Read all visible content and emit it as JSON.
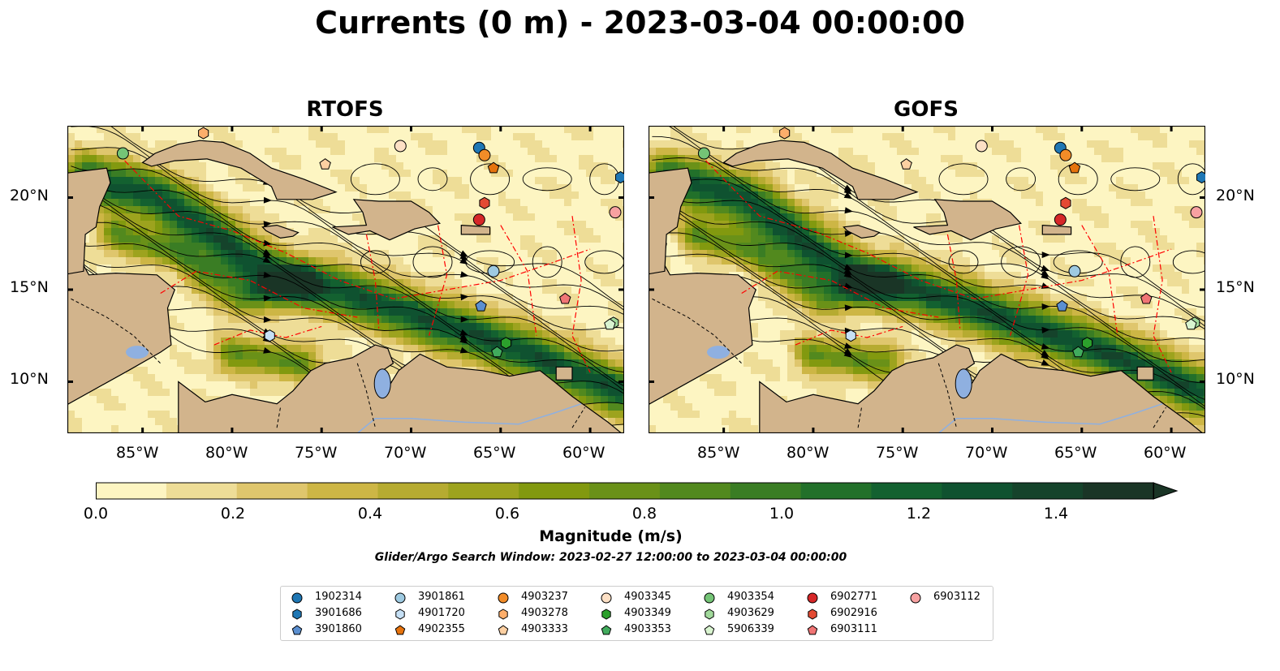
{
  "title": "Currents (0 m) - 2023-03-04 00:00:00",
  "panels": [
    {
      "title": "RTOFS"
    },
    {
      "title": "GOFS"
    }
  ],
  "axes": {
    "lon_ticks": [
      "85°W",
      "80°W",
      "75°W",
      "70°W",
      "65°W",
      "60°W"
    ],
    "lat_ticks": [
      "20°N",
      "15°N",
      "10°N"
    ]
  },
  "colorbar": {
    "label": "Magnitude (m/s)",
    "ticks": [
      "0.0",
      "0.2",
      "0.4",
      "0.6",
      "0.8",
      "1.0",
      "1.2",
      "1.4"
    ],
    "min": 0.0,
    "max": 1.5,
    "extend": "max",
    "colors": [
      "#fdf5c2",
      "#eedd97",
      "#dfc66d",
      "#cdb645",
      "#b6ab31",
      "#9da31e",
      "#82990f",
      "#6a9118",
      "#52891e",
      "#3a7d24",
      "#22702a",
      "#136130",
      "#0f5230",
      "#15432b",
      "#1a3526"
    ]
  },
  "search_window": "Glider/Argo Search Window: 2023-02-27 12:00:00 to 2023-03-04 00:00:00",
  "colors": {
    "land": "#d2b48c",
    "boundaries": "#ff0000",
    "lakes": "#8fb0e0"
  },
  "legend": [
    {
      "id": "1902314",
      "marker": "circle",
      "color": "#1f77b4"
    },
    {
      "id": "3901686",
      "marker": "hexagon",
      "color": "#1f77b4"
    },
    {
      "id": "3901860",
      "marker": "pentagon",
      "color": "#5b8fd0"
    },
    {
      "id": "3901861",
      "marker": "circle",
      "color": "#9ecae1"
    },
    {
      "id": "4901720",
      "marker": "hexagon",
      "color": "#c6e0f5"
    },
    {
      "id": "4902355",
      "marker": "pentagon",
      "color": "#e6730d"
    },
    {
      "id": "4903237",
      "marker": "circle",
      "color": "#f28c28"
    },
    {
      "id": "4903278",
      "marker": "hexagon",
      "color": "#fdae6b"
    },
    {
      "id": "4903333",
      "marker": "pentagon",
      "color": "#fdd0a2"
    },
    {
      "id": "4903345",
      "marker": "circle",
      "color": "#fde0c5"
    },
    {
      "id": "4903349",
      "marker": "hexagon",
      "color": "#2ca02c"
    },
    {
      "id": "4903353",
      "marker": "pentagon",
      "color": "#41ab5d"
    },
    {
      "id": "4903354",
      "marker": "circle",
      "color": "#74c476"
    },
    {
      "id": "4903629",
      "marker": "hexagon",
      "color": "#a1d99b"
    },
    {
      "id": "5906339",
      "marker": "pentagon",
      "color": "#d9f4d0"
    },
    {
      "id": "6902771",
      "marker": "circle",
      "color": "#d62728"
    },
    {
      "id": "6902916",
      "marker": "hexagon",
      "color": "#e34a33"
    },
    {
      "id": "6903111",
      "marker": "pentagon",
      "color": "#f07575"
    },
    {
      "id": "6903112",
      "marker": "circle",
      "color": "#f7a1a1"
    }
  ],
  "floats": [
    {
      "id": "1902314",
      "lon": -66.2,
      "lat": 22.7
    },
    {
      "id": "3901686",
      "lon": -58.3,
      "lat": 21.1
    },
    {
      "id": "3901860",
      "lon": -66.1,
      "lat": 14.1
    },
    {
      "id": "3901861",
      "lon": -65.4,
      "lat": 16.0
    },
    {
      "id": "4901720",
      "lon": -77.9,
      "lat": 12.5
    },
    {
      "id": "4902355",
      "lon": -65.4,
      "lat": 21.6
    },
    {
      "id": "4903237",
      "lon": -65.9,
      "lat": 22.3
    },
    {
      "id": "4903278",
      "lon": -81.6,
      "lat": 23.5
    },
    {
      "id": "4903333",
      "lon": -74.8,
      "lat": 21.8
    },
    {
      "id": "4903345",
      "lon": -70.6,
      "lat": 22.8
    },
    {
      "id": "4903349",
      "lon": -64.7,
      "lat": 12.1
    },
    {
      "id": "4903353",
      "lon": -65.2,
      "lat": 11.6
    },
    {
      "id": "4903354",
      "lon": -86.1,
      "lat": 22.4
    },
    {
      "id": "4903629",
      "lon": -58.7,
      "lat": 13.2
    },
    {
      "id": "5906339",
      "lon": -58.9,
      "lat": 13.1
    },
    {
      "id": "6902771",
      "lon": -66.2,
      "lat": 18.8
    },
    {
      "id": "6902916",
      "lon": -65.9,
      "lat": 19.7
    },
    {
      "id": "6903111",
      "lon": -61.4,
      "lat": 14.5
    },
    {
      "id": "6903112",
      "lon": -58.6,
      "lat": 19.2
    }
  ]
}
